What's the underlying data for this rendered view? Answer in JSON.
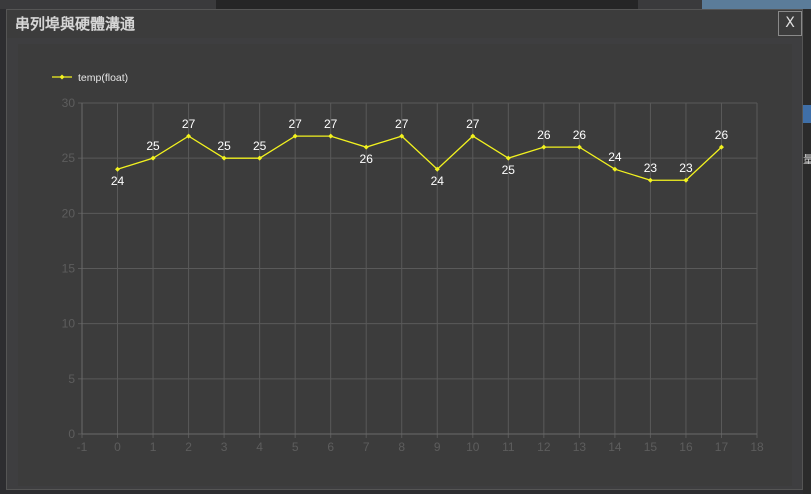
{
  "dialog": {
    "title": "串列埠與硬體溝通",
    "close_label": "X"
  },
  "side_glyph": "量",
  "colors": {
    "line": "#f2f21f",
    "grid": "#5a5a5a",
    "axis_text": "#5d5d5d",
    "label_text": "#ffffff",
    "panel": "#3c3c3c"
  },
  "chart_data": {
    "type": "line",
    "legend_position": "top-left",
    "grid": true,
    "xlim": [
      -1,
      18
    ],
    "ylim": [
      0,
      30
    ],
    "x_ticks": [
      -1,
      0,
      1,
      2,
      3,
      4,
      5,
      6,
      7,
      8,
      9,
      10,
      11,
      12,
      13,
      14,
      15,
      16,
      17,
      18
    ],
    "y_ticks": [
      0,
      5,
      10,
      15,
      20,
      25,
      30
    ],
    "series": [
      {
        "name": "temp(float)",
        "x": [
          0,
          1,
          2,
          3,
          4,
          5,
          6,
          7,
          8,
          9,
          10,
          11,
          12,
          13,
          14,
          15,
          16,
          17
        ],
        "values": [
          24,
          25,
          27,
          25,
          25,
          27,
          27,
          26,
          27,
          24,
          27,
          25,
          26,
          26,
          24,
          23,
          23,
          26
        ],
        "label_position": [
          "below",
          "above",
          "above",
          "above",
          "above",
          "above",
          "above",
          "below",
          "above",
          "below",
          "above",
          "below",
          "above",
          "above",
          "above",
          "above",
          "above",
          "above"
        ]
      }
    ]
  }
}
